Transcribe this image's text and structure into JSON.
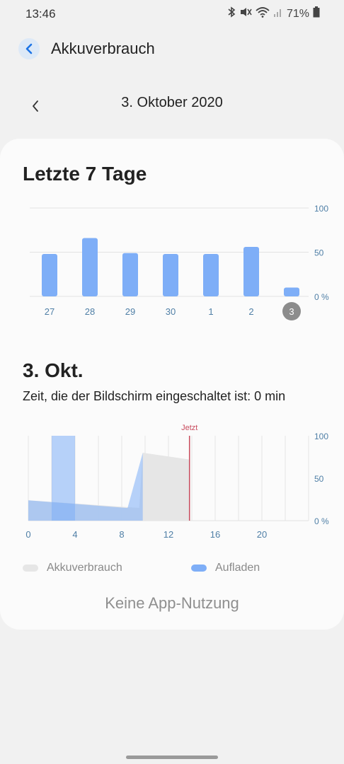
{
  "status_bar": {
    "time": "13:46",
    "battery": "71%",
    "icons": [
      "bluetooth-icon",
      "mute-icon",
      "wifi-icon",
      "signal-icon",
      "battery-icon"
    ]
  },
  "header": {
    "title": "Akkuverbrauch"
  },
  "date_nav": {
    "date": "3. Oktober 2020"
  },
  "week": {
    "title": "Letzte 7 Tage",
    "chart_data": {
      "type": "bar",
      "categories": [
        "27",
        "28",
        "29",
        "30",
        "1",
        "2",
        "3"
      ],
      "values": [
        48,
        66,
        49,
        48,
        48,
        56,
        10
      ],
      "selected": "3",
      "ylim": [
        0,
        100
      ],
      "yticks": [
        "100",
        "50",
        "0 %"
      ],
      "bar_color": "#7eaef7",
      "grid": true
    }
  },
  "day": {
    "title": "3. Okt.",
    "screen_time": "Zeit, die der Bildschirm eingeschaltet ist: 0 min",
    "chart_data": {
      "type": "area",
      "xlim": [
        0,
        24
      ],
      "xticks": [
        "0",
        "4",
        "8",
        "12",
        "16",
        "20"
      ],
      "ylim": [
        0,
        100
      ],
      "yticks": [
        "100",
        "50",
        "0 %"
      ],
      "now_label": "Jetzt",
      "now_x": 13.8,
      "series": [
        {
          "name": "Akkuverbrauch",
          "color": "#e5e5e5",
          "points": [
            [
              0,
              24
            ],
            [
              9.5,
              15
            ],
            [
              9.8,
              80
            ],
            [
              13.8,
              72
            ]
          ]
        },
        {
          "name": "Aufladen",
          "color": "#7eaef7",
          "points": [
            [
              0,
              24
            ],
            [
              8.4,
              15
            ],
            [
              8.5,
              15
            ],
            [
              9.8,
              80
            ]
          ],
          "bars": [
            [
              2,
              4,
              100
            ]
          ]
        }
      ]
    },
    "legend": {
      "usage": "Akkuverbrauch",
      "charging": "Aufladen"
    },
    "no_usage": "Keine App-Nutzung"
  }
}
